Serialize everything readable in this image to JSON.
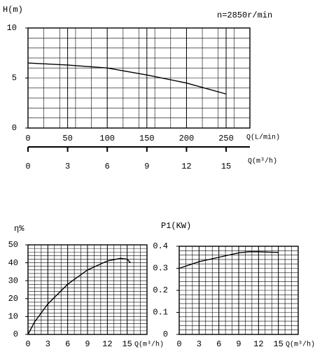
{
  "chart_data": [
    {
      "type": "line",
      "ylabel": "H(m)",
      "xlabel": "Q(L/min)",
      "annotation": "n=2850r/min",
      "x": [
        0,
        50,
        100,
        150,
        200,
        250
      ],
      "values": [
        6.5,
        6.3,
        6.0,
        5.3,
        4.5,
        3.4
      ],
      "color": "#000000",
      "xlim": [
        0,
        280
      ],
      "xticks": [
        0,
        50,
        100,
        150,
        200,
        250
      ],
      "ylim": [
        0,
        10
      ],
      "yticks": [
        0,
        5,
        10
      ],
      "x2label": "Q(m³/h)",
      "x2lim": [
        0,
        16.8
      ],
      "x2ticks": [
        0,
        3,
        6,
        9,
        12,
        15
      ],
      "grid": true,
      "minor_grid": {
        "x": 20,
        "y": 1
      }
    },
    {
      "type": "line",
      "ylabel": "η%",
      "xlabel": "Q(m³/h)",
      "x": [
        0,
        1,
        3,
        6,
        9,
        12,
        14,
        15,
        15.5
      ],
      "values": [
        0,
        7,
        17,
        28,
        36,
        41,
        42.5,
        42,
        40
      ],
      "color": "#000000",
      "xlim": [
        0,
        18
      ],
      "xticks": [
        0,
        3,
        6,
        9,
        12,
        15
      ],
      "ylim": [
        0,
        50
      ],
      "yticks": [
        0,
        10,
        20,
        30,
        40,
        50
      ],
      "grid": true,
      "minor_grid": {
        "x": 1,
        "y": 2
      }
    },
    {
      "type": "line",
      "title": "P1(KW)",
      "xlabel": "Q(m³/h)",
      "x": [
        0,
        3,
        6,
        9,
        10.5,
        12,
        15
      ],
      "values": [
        0.3,
        0.33,
        0.35,
        0.37,
        0.375,
        0.375,
        0.372
      ],
      "color": "#000000",
      "xlim": [
        0,
        18
      ],
      "xticks": [
        0,
        3,
        6,
        9,
        12,
        15
      ],
      "ylim": [
        0,
        0.4
      ],
      "yticks": [
        0,
        0.1,
        0.2,
        0.3,
        0.4
      ],
      "grid": true,
      "minor_grid": {
        "x": 1,
        "y": 0.02
      }
    }
  ]
}
